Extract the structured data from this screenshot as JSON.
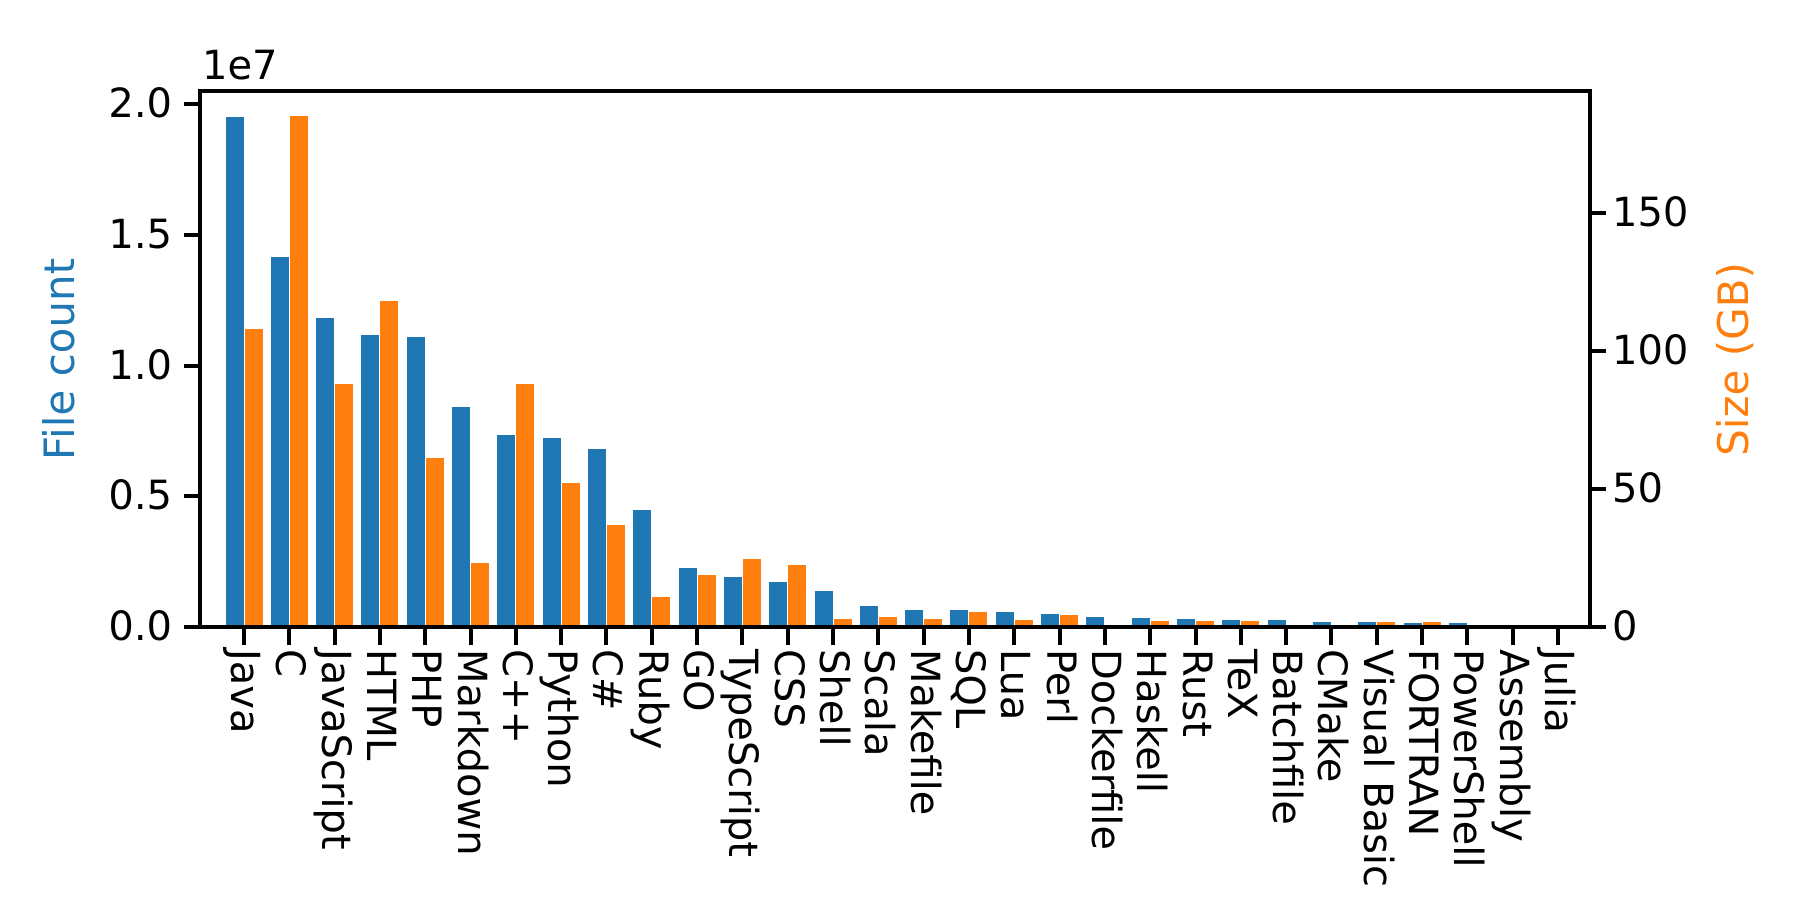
{
  "figure": {
    "background": "#ffffff"
  },
  "chart_data": {
    "type": "bar",
    "title": "",
    "offset_text": "1e7",
    "grid": false,
    "legend_position": "none",
    "categories": [
      "Java",
      "C",
      "JavaScript",
      "HTML",
      "PHP",
      "Markdown",
      "C++",
      "Python",
      "C#",
      "Ruby",
      "GO",
      "TypeScript",
      "CSS",
      "Shell",
      "Scala",
      "Makefile",
      "SQL",
      "Lua",
      "Perl",
      "Dockerfile",
      "Haskell",
      "Rust",
      "TeX",
      "Batchfile",
      "CMake",
      "Visual Basic",
      "FORTRAN",
      "PowerShell",
      "Assembly",
      "Julia"
    ],
    "series": [
      {
        "name": "File count",
        "axis": "left",
        "color": "#1f77b4",
        "values": [
          19500000,
          14150000,
          11800000,
          11150000,
          11100000,
          8430000,
          7350000,
          7220000,
          6810000,
          4460000,
          2240000,
          1910000,
          1730000,
          1370000,
          800000,
          660000,
          650000,
          580000,
          500000,
          380000,
          340000,
          320000,
          280000,
          250000,
          190000,
          180000,
          160000,
          150000,
          70000,
          40000
        ]
      },
      {
        "name": "Size (GB)",
        "axis": "right",
        "color": "#ff7f0e",
        "values": [
          108,
          185,
          88,
          118,
          61,
          23,
          88,
          52,
          37,
          10.8,
          19,
          24.5,
          22.5,
          2.8,
          3.7,
          2.9,
          5.3,
          2.5,
          4.5,
          0.6,
          2.0,
          2.3,
          2.2,
          0.4,
          0.35,
          1.9,
          1.8,
          0.7,
          0.65,
          0.2
        ]
      }
    ],
    "left_axis": {
      "label": "File count",
      "color": "#1f77b4",
      "lim": [
        0,
        20500000
      ],
      "ticks": [
        0,
        5000000,
        10000000,
        15000000,
        20000000
      ],
      "tick_labels": [
        "0.0",
        "0.5",
        "1.0",
        "1.5",
        "2.0"
      ]
    },
    "right_axis": {
      "label": "Size (GB)",
      "color": "#ff7f0e",
      "lim": [
        0,
        194
      ],
      "ticks": [
        0,
        50,
        100,
        150
      ],
      "tick_labels": [
        "0",
        "50",
        "100",
        "150"
      ]
    }
  }
}
